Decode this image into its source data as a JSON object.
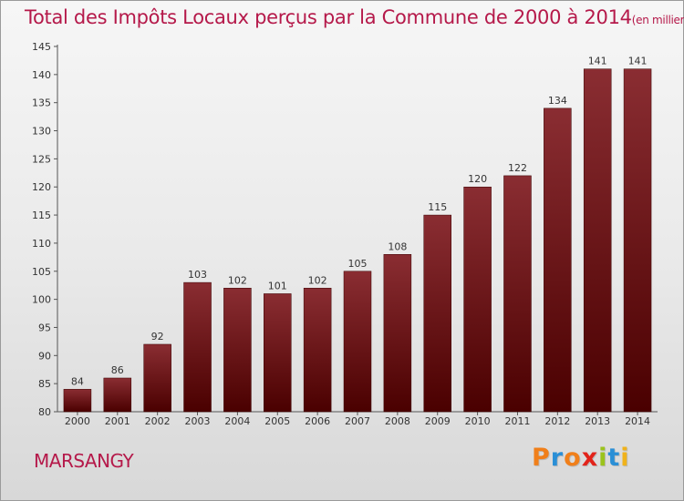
{
  "title": "Total des Impôts Locaux perçus par la Commune de 2000 à 2014",
  "title_unit": "(en milliers d'€)",
  "commune": "MARSANGY",
  "logo_text": "Proxiti",
  "logo_colors": [
    "#f07f1a",
    "#2a8fd6",
    "#f07f1a",
    "#e2231a",
    "#9bc31c",
    "#2a8fd6",
    "#f0b21a"
  ],
  "colors": {
    "title": "#b5194a",
    "bar_top": "#8a2d32",
    "bar_bottom": "#4a0000"
  },
  "chart_data": {
    "type": "bar",
    "categories": [
      "2000",
      "2001",
      "2002",
      "2003",
      "2004",
      "2005",
      "2006",
      "2007",
      "2008",
      "2009",
      "2010",
      "2011",
      "2012",
      "2013",
      "2014"
    ],
    "values": [
      84,
      86,
      92,
      103,
      102,
      101,
      102,
      105,
      108,
      115,
      120,
      122,
      134,
      141,
      141
    ],
    "ylim": [
      80,
      145
    ],
    "yticks": [
      80,
      85,
      90,
      95,
      100,
      105,
      110,
      115,
      120,
      125,
      130,
      135,
      140,
      145
    ],
    "grid": false
  }
}
